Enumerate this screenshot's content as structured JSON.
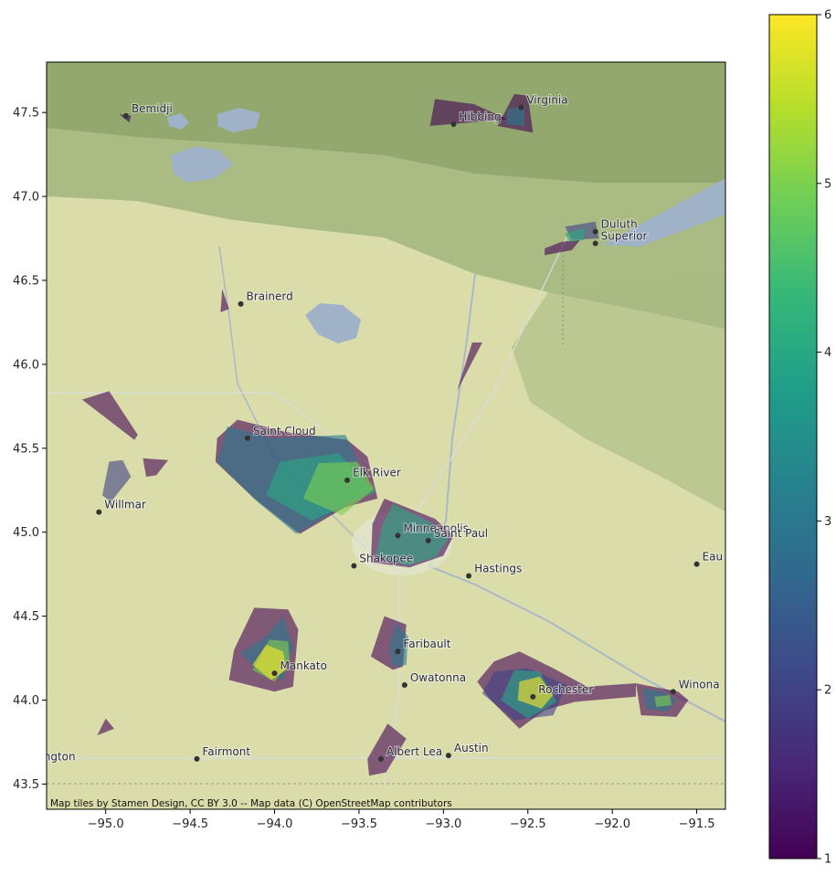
{
  "chart_data": {
    "type": "map",
    "x_ticks": [
      "−95.0",
      "−94.5",
      "−94.0",
      "−93.5",
      "−93.0",
      "−92.5",
      "−92.0",
      "−91.5"
    ],
    "x_tick_values": [
      -95.0,
      -94.5,
      -94.0,
      -93.5,
      -93.0,
      -92.5,
      -92.0,
      -91.5
    ],
    "y_ticks": [
      "47.5",
      "47.0",
      "46.5",
      "46.0",
      "45.5",
      "45.0",
      "44.5",
      "44.0",
      "43.5"
    ],
    "y_tick_values": [
      47.5,
      47.0,
      46.5,
      46.0,
      45.5,
      45.0,
      44.5,
      44.0,
      43.5
    ],
    "xlim": [
      -95.35,
      -91.33
    ],
    "ylim": [
      43.35,
      47.8
    ],
    "colorbar": {
      "colormap": "viridis",
      "range": [
        1,
        6
      ],
      "ticks": [
        "1",
        "2",
        "3",
        "4",
        "5",
        "6"
      ],
      "tick_values": [
        1,
        2,
        3,
        4,
        5,
        6
      ]
    },
    "attribution": "Map tiles by Stamen Design, CC BY 3.0 -- Map data (C) OpenStreetMap contributors",
    "places": [
      {
        "name": "Bemidji",
        "lon": -94.88,
        "lat": 47.48
      },
      {
        "name": "Virginia",
        "lon": -92.54,
        "lat": 47.53
      },
      {
        "name": "Hibbing",
        "lon": -92.94,
        "lat": 47.43
      },
      {
        "name": "Duluth",
        "lon": -92.1,
        "lat": 46.79
      },
      {
        "name": "Superior",
        "lon": -92.1,
        "lat": 46.72
      },
      {
        "name": "Brainerd",
        "lon": -94.2,
        "lat": 46.36
      },
      {
        "name": "Saint Cloud",
        "lon": -94.16,
        "lat": 45.56
      },
      {
        "name": "Elk River",
        "lon": -93.57,
        "lat": 45.31
      },
      {
        "name": "Willmar",
        "lon": -95.04,
        "lat": 45.12
      },
      {
        "name": "Minneapolis",
        "lon": -93.27,
        "lat": 44.98
      },
      {
        "name": "Saint Paul",
        "lon": -93.09,
        "lat": 44.95
      },
      {
        "name": "Shakopee",
        "lon": -93.53,
        "lat": 44.8
      },
      {
        "name": "Hastings",
        "lon": -92.85,
        "lat": 44.74
      },
      {
        "name": "Eau",
        "lon": -91.5,
        "lat": 44.81
      },
      {
        "name": "Faribault",
        "lon": -93.27,
        "lat": 44.29
      },
      {
        "name": "Mankato",
        "lon": -94.0,
        "lat": 44.16
      },
      {
        "name": "Owatonna",
        "lon": -93.23,
        "lat": 44.09
      },
      {
        "name": "Rochester",
        "lon": -92.47,
        "lat": 44.02
      },
      {
        "name": "Winona",
        "lon": -91.64,
        "lat": 44.05
      },
      {
        "name": "Fairmont",
        "lon": -94.46,
        "lat": 43.65
      },
      {
        "name": "Albert Lea",
        "lon": -93.37,
        "lat": 43.65
      },
      {
        "name": "Austin",
        "lon": -92.97,
        "lat": 43.67
      },
      {
        "name": "ngton",
        "lon": -95.4,
        "lat": 43.62
      }
    ],
    "regions": [
      {
        "value": 1,
        "coords": [
          [
            -93.05,
            47.58
          ],
          [
            -92.82,
            47.55
          ],
          [
            -92.62,
            47.46
          ],
          [
            -93.08,
            47.42
          ]
        ]
      },
      {
        "value": 1,
        "coords": [
          [
            -92.58,
            47.61
          ],
          [
            -92.5,
            47.6
          ],
          [
            -92.47,
            47.38
          ],
          [
            -92.68,
            47.42
          ]
        ]
      },
      {
        "value": 3,
        "coords": [
          [
            -92.62,
            47.52
          ],
          [
            -92.52,
            47.54
          ],
          [
            -92.52,
            47.42
          ],
          [
            -92.63,
            47.43
          ]
        ]
      },
      {
        "value": 1,
        "coords": [
          [
            -94.92,
            47.49
          ],
          [
            -94.85,
            47.48
          ],
          [
            -94.86,
            47.44
          ]
        ]
      },
      {
        "value": 2,
        "coords": [
          [
            -92.28,
            46.82
          ],
          [
            -92.1,
            46.85
          ],
          [
            -92.08,
            46.75
          ],
          [
            -92.24,
            46.74
          ]
        ]
      },
      {
        "value": 1,
        "coords": [
          [
            -92.4,
            46.69
          ],
          [
            -92.3,
            46.73
          ],
          [
            -92.19,
            46.74
          ],
          [
            -92.24,
            46.68
          ],
          [
            -92.4,
            46.65
          ]
        ]
      },
      {
        "value": 4,
        "coords": [
          [
            -92.28,
            46.78
          ],
          [
            -92.16,
            46.81
          ],
          [
            -92.17,
            46.74
          ],
          [
            -92.25,
            46.73
          ]
        ]
      },
      {
        "value": 1,
        "coords": [
          [
            -94.31,
            46.45
          ],
          [
            -94.27,
            46.33
          ],
          [
            -94.32,
            46.31
          ]
        ]
      },
      {
        "value": 1,
        "coords": [
          [
            -92.83,
            46.13
          ],
          [
            -92.77,
            46.13
          ],
          [
            -92.92,
            45.84
          ]
        ]
      },
      {
        "value": 1,
        "coords": [
          [
            -95.14,
            45.79
          ],
          [
            -94.98,
            45.84
          ],
          [
            -94.81,
            45.58
          ],
          [
            -94.83,
            45.55
          ]
        ]
      },
      {
        "value": 1,
        "coords": [
          [
            -94.78,
            45.44
          ],
          [
            -94.63,
            45.43
          ],
          [
            -94.7,
            45.34
          ],
          [
            -94.76,
            45.33
          ]
        ]
      },
      {
        "value": 2,
        "coords": [
          [
            -94.98,
            45.42
          ],
          [
            -94.9,
            45.43
          ],
          [
            -94.85,
            45.33
          ],
          [
            -94.97,
            45.18
          ],
          [
            -95.02,
            45.22
          ]
        ]
      },
      {
        "value": 1,
        "coords": [
          [
            -94.22,
            45.67
          ],
          [
            -93.95,
            45.6
          ],
          [
            -93.57,
            45.55
          ],
          [
            -93.45,
            45.45
          ],
          [
            -93.39,
            45.2
          ],
          [
            -93.58,
            45.15
          ],
          [
            -93.85,
            44.99
          ],
          [
            -94.12,
            45.2
          ],
          [
            -94.35,
            45.42
          ],
          [
            -94.34,
            45.56
          ]
        ]
      },
      {
        "value": 3,
        "coords": [
          [
            -94.28,
            45.63
          ],
          [
            -94.02,
            45.56
          ],
          [
            -93.58,
            45.58
          ],
          [
            -93.43,
            45.25
          ],
          [
            -93.87,
            44.99
          ],
          [
            -94.1,
            45.18
          ],
          [
            -94.34,
            45.42
          ]
        ]
      },
      {
        "value": 4,
        "coords": [
          [
            -93.97,
            45.42
          ],
          [
            -93.62,
            45.47
          ],
          [
            -93.4,
            45.24
          ],
          [
            -93.78,
            45.07
          ],
          [
            -94.05,
            45.22
          ]
        ]
      },
      {
        "value": 5,
        "coords": [
          [
            -93.74,
            45.41
          ],
          [
            -93.51,
            45.42
          ],
          [
            -93.41,
            45.26
          ],
          [
            -93.6,
            45.1
          ],
          [
            -93.83,
            45.2
          ]
        ]
      },
      {
        "value": 1,
        "coords": [
          [
            -93.35,
            45.2
          ],
          [
            -93.05,
            45.08
          ],
          [
            -92.94,
            44.98
          ],
          [
            -93.0,
            44.86
          ],
          [
            -93.2,
            44.79
          ],
          [
            -93.43,
            44.82
          ],
          [
            -93.42,
            45.05
          ]
        ]
      },
      {
        "value": 4,
        "coords": [
          [
            -93.3,
            45.17
          ],
          [
            -93.06,
            45.05
          ],
          [
            -92.97,
            44.96
          ],
          [
            -93.05,
            44.85
          ],
          [
            -93.22,
            44.8
          ],
          [
            -93.4,
            44.86
          ],
          [
            -93.36,
            45.05
          ]
        ]
      },
      {
        "value": 1,
        "coords": [
          [
            -93.35,
            44.5
          ],
          [
            -93.22,
            44.45
          ],
          [
            -93.24,
            44.2
          ],
          [
            -93.3,
            44.18
          ],
          [
            -93.43,
            44.26
          ]
        ]
      },
      {
        "value": 3,
        "coords": [
          [
            -93.28,
            44.46
          ],
          [
            -93.21,
            44.38
          ],
          [
            -93.22,
            44.21
          ],
          [
            -93.3,
            44.2
          ],
          [
            -93.32,
            44.32
          ]
        ]
      },
      {
        "value": 1,
        "coords": [
          [
            -94.12,
            44.55
          ],
          [
            -93.92,
            44.54
          ],
          [
            -93.86,
            44.42
          ],
          [
            -93.89,
            44.08
          ],
          [
            -94.0,
            44.05
          ],
          [
            -94.27,
            44.12
          ],
          [
            -94.24,
            44.3
          ]
        ]
      },
      {
        "value": 3,
        "coords": [
          [
            -94.05,
            44.38
          ],
          [
            -93.95,
            44.5
          ],
          [
            -93.89,
            44.32
          ],
          [
            -93.95,
            44.12
          ],
          [
            -94.1,
            44.17
          ],
          [
            -94.2,
            44.28
          ]
        ]
      },
      {
        "value": 5,
        "coords": [
          [
            -94.03,
            44.36
          ],
          [
            -93.92,
            44.35
          ],
          [
            -93.91,
            44.23
          ],
          [
            -94.0,
            44.11
          ],
          [
            -94.13,
            44.18
          ]
        ]
      },
      {
        "value": 6,
        "coords": [
          [
            -94.05,
            44.33
          ],
          [
            -93.95,
            44.29
          ],
          [
            -93.93,
            44.18
          ],
          [
            -94.02,
            44.12
          ],
          [
            -94.13,
            44.21
          ]
        ]
      },
      {
        "value": 1,
        "coords": [
          [
            -92.7,
            44.23
          ],
          [
            -92.55,
            44.29
          ],
          [
            -92.35,
            44.19
          ],
          [
            -92.15,
            44.08
          ],
          [
            -91.86,
            44.1
          ],
          [
            -91.86,
            44.02
          ],
          [
            -92.22,
            43.99
          ],
          [
            -92.4,
            43.94
          ],
          [
            -92.55,
            43.83
          ],
          [
            -92.72,
            44.0
          ],
          [
            -92.8,
            44.11
          ]
        ]
      },
      {
        "value": 2,
        "coords": [
          [
            -92.7,
            44.17
          ],
          [
            -92.5,
            44.19
          ],
          [
            -92.27,
            44.09
          ],
          [
            -92.35,
            43.91
          ],
          [
            -92.58,
            43.88
          ],
          [
            -92.77,
            44.04
          ]
        ]
      },
      {
        "value": 4,
        "coords": [
          [
            -92.58,
            44.18
          ],
          [
            -92.43,
            44.17
          ],
          [
            -92.33,
            43.99
          ],
          [
            -92.5,
            43.89
          ],
          [
            -92.66,
            44.0
          ]
        ]
      },
      {
        "value": 6,
        "coords": [
          [
            -92.55,
            44.11
          ],
          [
            -92.43,
            44.14
          ],
          [
            -92.35,
            44.03
          ],
          [
            -92.42,
            43.95
          ],
          [
            -92.56,
            44.0
          ]
        ]
      },
      {
        "value": 1,
        "coords": [
          [
            -91.86,
            44.1
          ],
          [
            -91.61,
            44.05
          ],
          [
            -91.55,
            44.0
          ],
          [
            -91.62,
            43.9
          ],
          [
            -91.83,
            43.91
          ]
        ]
      },
      {
        "value": 3,
        "coords": [
          [
            -91.82,
            44.07
          ],
          [
            -91.7,
            44.05
          ],
          [
            -91.62,
            44.0
          ],
          [
            -91.68,
            43.93
          ],
          [
            -91.8,
            43.95
          ]
        ]
      },
      {
        "value": 5,
        "coords": [
          [
            -91.75,
            44.02
          ],
          [
            -91.66,
            44.03
          ],
          [
            -91.65,
            43.97
          ],
          [
            -91.74,
            43.96
          ]
        ]
      },
      {
        "value": 1,
        "coords": [
          [
            -93.33,
            43.86
          ],
          [
            -93.22,
            43.77
          ],
          [
            -93.34,
            43.57
          ],
          [
            -93.44,
            43.55
          ],
          [
            -93.45,
            43.65
          ]
        ]
      },
      {
        "value": 1,
        "coords": [
          [
            -95.0,
            43.89
          ],
          [
            -94.95,
            43.83
          ],
          [
            -95.05,
            43.79
          ]
        ]
      }
    ]
  }
}
